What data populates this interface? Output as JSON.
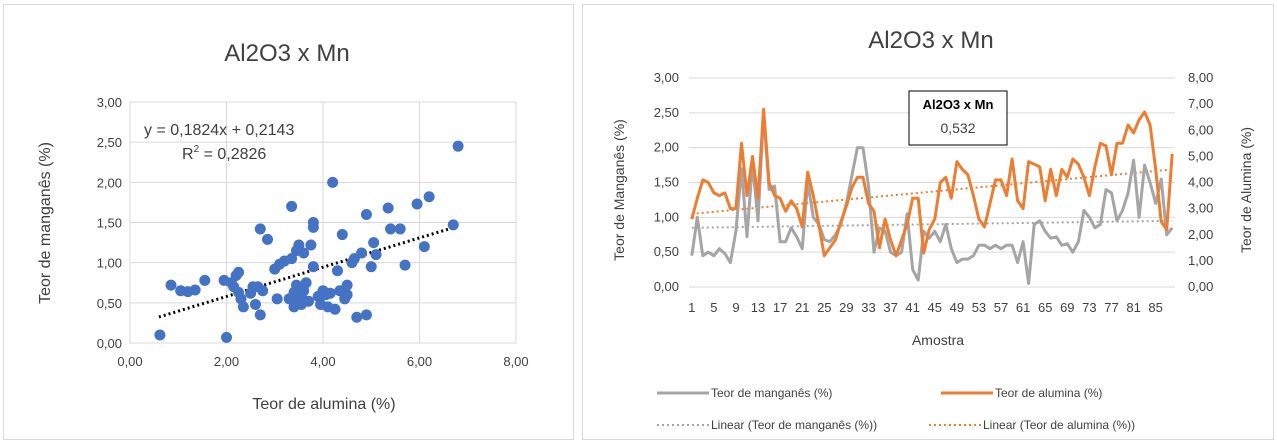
{
  "chart_data": [
    {
      "type": "scatter",
      "title": "Al2O3 x Mn",
      "xlabel": "Teor de alumina (%)",
      "ylabel": "Teor de manganês (%)",
      "xlim": [
        0,
        8
      ],
      "ylim": [
        0,
        3
      ],
      "x_ticks": [
        "0,00",
        "2,00",
        "4,00",
        "6,00",
        "8,00"
      ],
      "y_ticks": [
        "0,00",
        "0,50",
        "1,00",
        "1,50",
        "2,00",
        "2,50",
        "3,00"
      ],
      "grid": true,
      "marker_color": "#4472c4",
      "trendline": {
        "slope": 0.1824,
        "intercept": 0.2143,
        "x_range": [
          0.6,
          6.8
        ],
        "color": "#000000",
        "style": "dotted"
      },
      "equation": "y = 0,1824x + 0,2143",
      "r2_prefix": "R",
      "r2_sup": "2",
      "r2_value": " = 0,2826",
      "points": [
        [
          0.62,
          0.1
        ],
        [
          0.85,
          0.72
        ],
        [
          1.05,
          0.65
        ],
        [
          1.2,
          0.64
        ],
        [
          1.35,
          0.66
        ],
        [
          1.55,
          0.78
        ],
        [
          1.95,
          0.78
        ],
        [
          2.0,
          0.07
        ],
        [
          2.1,
          0.75
        ],
        [
          2.15,
          0.7
        ],
        [
          2.2,
          0.84
        ],
        [
          2.25,
          0.88
        ],
        [
          2.25,
          0.63
        ],
        [
          2.3,
          0.55
        ],
        [
          2.35,
          0.45
        ],
        [
          2.5,
          0.62
        ],
        [
          2.55,
          0.7
        ],
        [
          2.6,
          0.48
        ],
        [
          2.65,
          0.7
        ],
        [
          2.7,
          1.42
        ],
        [
          2.7,
          0.35
        ],
        [
          2.75,
          0.65
        ],
        [
          2.85,
          1.29
        ],
        [
          3.0,
          0.92
        ],
        [
          3.05,
          0.55
        ],
        [
          3.1,
          0.98
        ],
        [
          3.2,
          1.02
        ],
        [
          3.3,
          0.55
        ],
        [
          3.35,
          1.7
        ],
        [
          3.35,
          1.05
        ],
        [
          3.4,
          0.45
        ],
        [
          3.4,
          0.63
        ],
        [
          3.45,
          0.72
        ],
        [
          3.45,
          1.15
        ],
        [
          3.5,
          1.22
        ],
        [
          3.5,
          0.52
        ],
        [
          3.55,
          0.58
        ],
        [
          3.55,
          0.48
        ],
        [
          3.6,
          1.12
        ],
        [
          3.6,
          0.65
        ],
        [
          3.65,
          0.75
        ],
        [
          3.7,
          0.52
        ],
        [
          3.75,
          1.22
        ],
        [
          3.8,
          1.44
        ],
        [
          3.8,
          1.5
        ],
        [
          3.8,
          0.95
        ],
        [
          3.9,
          0.58
        ],
        [
          3.95,
          0.48
        ],
        [
          4.0,
          0.65
        ],
        [
          4.05,
          0.6
        ],
        [
          4.1,
          0.45
        ],
        [
          4.15,
          0.62
        ],
        [
          4.2,
          2.0
        ],
        [
          4.25,
          0.42
        ],
        [
          4.3,
          0.9
        ],
        [
          4.35,
          0.65
        ],
        [
          4.4,
          1.35
        ],
        [
          4.45,
          0.55
        ],
        [
          4.5,
          0.72
        ],
        [
          4.5,
          0.6
        ],
        [
          4.6,
          1.0
        ],
        [
          4.65,
          1.05
        ],
        [
          4.7,
          0.32
        ],
        [
          4.8,
          1.12
        ],
        [
          4.9,
          0.35
        ],
        [
          4.9,
          1.6
        ],
        [
          5.0,
          0.95
        ],
        [
          5.05,
          1.25
        ],
        [
          5.1,
          1.1
        ],
        [
          5.35,
          1.68
        ],
        [
          5.4,
          1.42
        ],
        [
          5.6,
          1.42
        ],
        [
          5.7,
          0.97
        ],
        [
          5.95,
          1.73
        ],
        [
          6.1,
          1.2
        ],
        [
          6.2,
          1.82
        ],
        [
          6.7,
          1.47
        ],
        [
          6.8,
          2.45
        ]
      ]
    },
    {
      "type": "line",
      "title": "Al2O3 x Mn",
      "xlabel": "Amostra",
      "ylabel_left": "Teor de Manganês (%)",
      "ylabel_right": "Teor de Alumina (%)",
      "ylim_left": [
        0,
        3
      ],
      "ylim_right": [
        0,
        8
      ],
      "y_ticks_left": [
        "0,00",
        "0,50",
        "1,00",
        "1,50",
        "2,00",
        "2,50",
        "3,00"
      ],
      "y_ticks_right": [
        "0,00",
        "1,00",
        "2,00",
        "3,00",
        "4,00",
        "5,00",
        "6,00",
        "7,00",
        "8,00"
      ],
      "x_ticks": [
        "1",
        "5",
        "9",
        "13",
        "17",
        "21",
        "25",
        "29",
        "33",
        "37",
        "41",
        "45",
        "49",
        "53",
        "57",
        "61",
        "65",
        "69",
        "73",
        "77",
        "81",
        "85"
      ],
      "x_count": 88,
      "annotation": {
        "title": "Al2O3 x Mn",
        "value": "0,532"
      },
      "series": [
        {
          "name": "Teor de manganês (%)",
          "axis": "left",
          "color": "#a5a5a5",
          "values": [
            0.45,
            1.0,
            0.45,
            0.5,
            0.45,
            0.55,
            0.48,
            0.35,
            0.8,
            1.7,
            0.72,
            1.78,
            0.95,
            2.5,
            1.4,
            1.45,
            0.65,
            0.65,
            0.85,
            0.72,
            0.55,
            1.5,
            1.0,
            0.9,
            0.68,
            0.65,
            0.75,
            0.9,
            1.2,
            1.6,
            2.0,
            2.0,
            1.45,
            0.5,
            0.85,
            0.8,
            0.5,
            0.45,
            0.5,
            1.05,
            0.25,
            0.1,
            0.8,
            0.7,
            0.8,
            0.65,
            0.9,
            0.55,
            0.35,
            0.4,
            0.4,
            0.45,
            0.6,
            0.6,
            0.55,
            0.6,
            0.55,
            0.6,
            0.6,
            0.35,
            0.65,
            0.05,
            0.9,
            0.95,
            0.8,
            0.7,
            0.72,
            0.6,
            0.62,
            0.5,
            0.65,
            1.1,
            1.0,
            0.85,
            0.9,
            1.4,
            1.35,
            0.95,
            1.1,
            1.35,
            1.82,
            1.0,
            1.75,
            1.5,
            1.2,
            1.55,
            0.75,
            0.85
          ]
        },
        {
          "name": "Teor de alumina (%)",
          "axis": "right",
          "color": "#ed7d31",
          "values": [
            2.6,
            3.4,
            4.1,
            4.0,
            3.6,
            3.5,
            3.6,
            3.0,
            3.0,
            5.5,
            3.5,
            5.0,
            3.4,
            6.8,
            4.0,
            3.5,
            3.4,
            2.9,
            3.3,
            3.0,
            2.3,
            4.4,
            3.5,
            2.4,
            1.2,
            1.5,
            1.8,
            2.5,
            3.1,
            3.8,
            4.2,
            4.2,
            3.2,
            2.9,
            1.5,
            2.6,
            1.8,
            1.2,
            1.8,
            2.4,
            3.4,
            3.4,
            1.3,
            2.2,
            2.6,
            4.0,
            4.2,
            3.4,
            4.8,
            4.5,
            4.3,
            3.5,
            2.6,
            2.3,
            3.2,
            4.1,
            4.1,
            3.5,
            4.9,
            3.3,
            3.0,
            4.8,
            4.7,
            4.6,
            3.3,
            4.5,
            3.5,
            4.5,
            4.2,
            4.9,
            4.7,
            4.2,
            3.5,
            4.6,
            5.5,
            5.4,
            4.3,
            5.5,
            5.5,
            6.2,
            5.9,
            6.4,
            6.7,
            6.2,
            4.5,
            2.5,
            2.2,
            5.1
          ]
        }
      ],
      "trendlines": [
        {
          "name": "Linear (Teor de manganês (%))",
          "axis": "left",
          "from": 0.85,
          "to": 0.95,
          "color": "#a5a5a5",
          "style": "dotted"
        },
        {
          "name": "Linear (Teor de alumina (%))",
          "axis": "right",
          "from": 2.8,
          "to": 4.5,
          "color": "#ed7d31",
          "style": "dotted"
        }
      ],
      "legend_position": "bottom"
    }
  ]
}
